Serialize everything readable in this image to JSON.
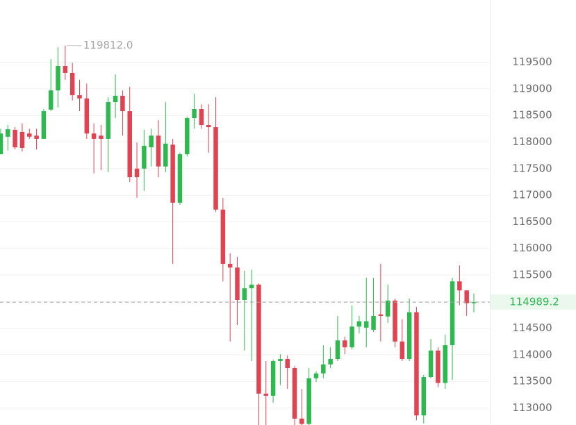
{
  "chart_data": {
    "type": "candlestick",
    "ohlc": [
      [
        117770,
        118250,
        117770,
        118160
      ],
      [
        118100,
        118320,
        117840,
        118240
      ],
      [
        118230,
        118280,
        117860,
        117900
      ],
      [
        118190,
        118350,
        117820,
        117890
      ],
      [
        118160,
        118250,
        118060,
        118100
      ],
      [
        118120,
        118250,
        117860,
        118060
      ],
      [
        118060,
        118620,
        118060,
        118580
      ],
      [
        118610,
        119560,
        118580,
        118970
      ],
      [
        118970,
        119780,
        118650,
        119430
      ],
      [
        119430,
        119812,
        119170,
        119300
      ],
      [
        119300,
        119490,
        118780,
        118880
      ],
      [
        118880,
        119170,
        118580,
        118820
      ],
      [
        118820,
        119100,
        118060,
        118160
      ],
      [
        118160,
        118350,
        117410,
        118060
      ],
      [
        118120,
        118320,
        117470,
        118060
      ],
      [
        118060,
        118840,
        117430,
        118750
      ],
      [
        118750,
        119270,
        118450,
        118870
      ],
      [
        118870,
        118970,
        118120,
        118580
      ],
      [
        118580,
        119040,
        117250,
        117340
      ],
      [
        117500,
        117990,
        116950,
        117340
      ],
      [
        117500,
        118230,
        117080,
        117930
      ],
      [
        117900,
        118250,
        117540,
        118120
      ],
      [
        118120,
        118410,
        117340,
        117540
      ],
      [
        117540,
        118750,
        117430,
        117970
      ],
      [
        117950,
        118060,
        115710,
        116860
      ],
      [
        116860,
        117800,
        116820,
        117770
      ],
      [
        117770,
        118480,
        117730,
        118450
      ],
      [
        118450,
        118910,
        118250,
        118620
      ],
      [
        118620,
        118710,
        118250,
        118320
      ],
      [
        118320,
        118710,
        117800,
        118280
      ],
      [
        118280,
        118840,
        116690,
        116730
      ],
      [
        116730,
        116950,
        115380,
        115710
      ],
      [
        115710,
        115910,
        114250,
        115640
      ],
      [
        115640,
        115840,
        114560,
        115030
      ],
      [
        115030,
        115580,
        114080,
        115250
      ],
      [
        115250,
        115600,
        113880,
        115320
      ],
      [
        115320,
        115340,
        112650,
        113270
      ],
      [
        113270,
        113880,
        112650,
        113230
      ],
      [
        113230,
        113910,
        113100,
        113880
      ],
      [
        113880,
        114010,
        113430,
        113920
      ],
      [
        113920,
        113990,
        113360,
        113750
      ],
      [
        113750,
        113790,
        112650,
        112800
      ],
      [
        112800,
        113360,
        112650,
        112700
      ],
      [
        112700,
        113750,
        112650,
        113560
      ],
      [
        113560,
        113690,
        113490,
        113650
      ],
      [
        113650,
        114180,
        113560,
        113820
      ],
      [
        113820,
        114140,
        113750,
        113920
      ],
      [
        113920,
        114730,
        113880,
        114270
      ],
      [
        114270,
        114340,
        114010,
        114140
      ],
      [
        114140,
        114930,
        114100,
        114530
      ],
      [
        114530,
        114730,
        114400,
        114630
      ],
      [
        114510,
        115450,
        114140,
        114630
      ],
      [
        114470,
        115450,
        114430,
        114730
      ],
      [
        114760,
        115710,
        114250,
        114730
      ],
      [
        114720,
        115320,
        114600,
        115020
      ],
      [
        115020,
        115060,
        114140,
        114250
      ],
      [
        114250,
        114670,
        113880,
        113920
      ],
      [
        113920,
        115060,
        113880,
        114800
      ],
      [
        114800,
        114900,
        112770,
        112860
      ],
      [
        112860,
        113620,
        112710,
        113580
      ],
      [
        113580,
        114300,
        113560,
        114080
      ],
      [
        114080,
        114140,
        113390,
        113470
      ],
      [
        113470,
        114380,
        113360,
        114180
      ],
      [
        114180,
        115450,
        113530,
        115380
      ],
      [
        115380,
        115680,
        114930,
        115210
      ],
      [
        115210,
        115210,
        114730,
        114970
      ],
      [
        114970,
        115150,
        114800,
        114989.2
      ]
    ],
    "up_color": "#2fb84f",
    "down_color": "#e04352",
    "ylim": [
      112680,
      120670
    ],
    "yticks": [
      113000,
      113500,
      114000,
      114500,
      115000,
      115500,
      116000,
      116500,
      117000,
      117500,
      118000,
      118500,
      119000,
      119500
    ],
    "grid": true,
    "last_price": 114989.2,
    "max_annotation": {
      "value": 119812,
      "label": "119812.0"
    }
  }
}
